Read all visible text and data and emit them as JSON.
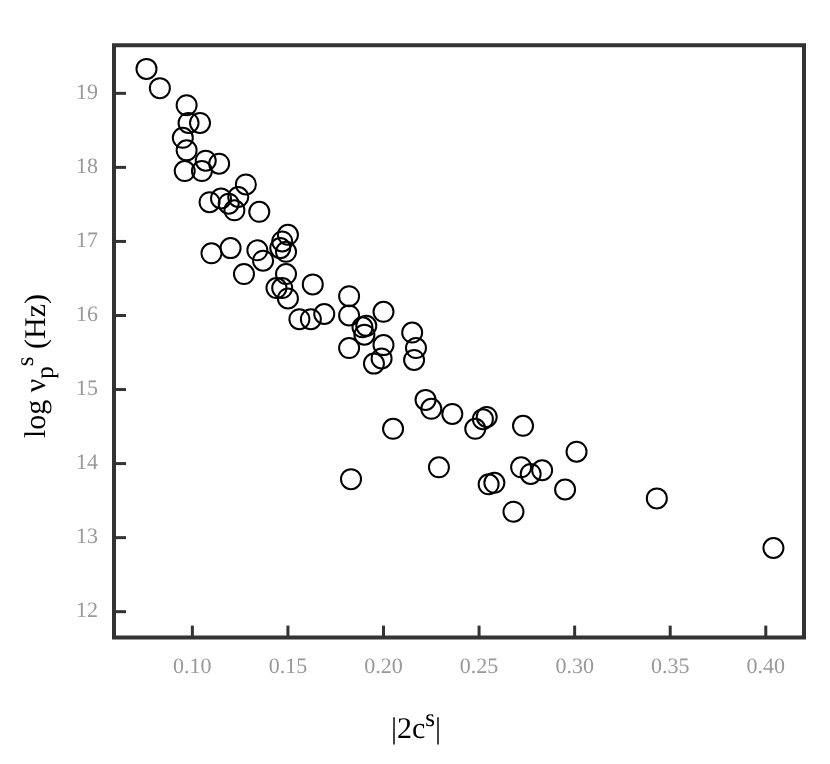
{
  "chart_data": {
    "type": "scatter",
    "xlabel": "|2c$^{s}$|",
    "ylabel": "log ν$_{p}$$^{s}$ (Hz)",
    "marker": "circle",
    "grid": false,
    "legend": false,
    "xlim": [
      0.059,
      0.42
    ],
    "xticks": [
      {
        "value": 0.1,
        "label": "0.10"
      },
      0.15,
      {
        "value": 0.2,
        "label": "0.20"
      },
      0.25,
      {
        "value": 0.3,
        "label": "0.30"
      },
      0.35,
      {
        "value": 0.4,
        "label": "0.40"
      }
    ],
    "ylim": [
      11.65,
      19.65
    ],
    "yticks": [
      12,
      13,
      14,
      15,
      16,
      17,
      18,
      19
    ],
    "series": [
      {
        "color": "#000000",
        "x": [
          0.076,
          0.083,
          0.097,
          0.098,
          0.104,
          0.095,
          0.097,
          0.096,
          0.107,
          0.105,
          0.114,
          0.109,
          0.115,
          0.119,
          0.122,
          0.124,
          0.128,
          0.135,
          0.11,
          0.12,
          0.134,
          0.137,
          0.127,
          0.146,
          0.147,
          0.15,
          0.149,
          0.144,
          0.147,
          0.149,
          0.15,
          0.163,
          0.156,
          0.162,
          0.169,
          0.182,
          0.182,
          0.189,
          0.19,
          0.191,
          0.2,
          0.182,
          0.195,
          0.199,
          0.2,
          0.215,
          0.217,
          0.216,
          0.183,
          0.205,
          0.222,
          0.225,
          0.236,
          0.229,
          0.248,
          0.252,
          0.254,
          0.273,
          0.272,
          0.277,
          0.283,
          0.255,
          0.258,
          0.268,
          0.295,
          0.301,
          0.343,
          0.404
        ],
        "values": [
          19.33,
          19.07,
          18.84,
          18.6,
          18.6,
          18.4,
          18.23,
          17.95,
          18.09,
          17.95,
          18.05,
          17.53,
          17.58,
          17.51,
          17.42,
          17.6,
          17.77,
          17.4,
          16.84,
          16.91,
          16.88,
          16.74,
          16.56,
          16.91,
          17.0,
          17.09,
          16.86,
          16.37,
          16.37,
          16.56,
          16.23,
          16.42,
          15.95,
          15.95,
          16.02,
          16.26,
          16.0,
          15.84,
          15.74,
          15.86,
          16.05,
          15.56,
          15.35,
          15.42,
          15.6,
          15.77,
          15.56,
          15.4,
          13.79,
          14.47,
          14.86,
          14.74,
          14.67,
          13.95,
          14.47,
          14.6,
          14.63,
          14.51,
          13.95,
          13.86,
          13.91,
          13.72,
          13.74,
          13.35,
          13.65,
          14.16,
          13.53,
          12.86
        ]
      }
    ]
  }
}
